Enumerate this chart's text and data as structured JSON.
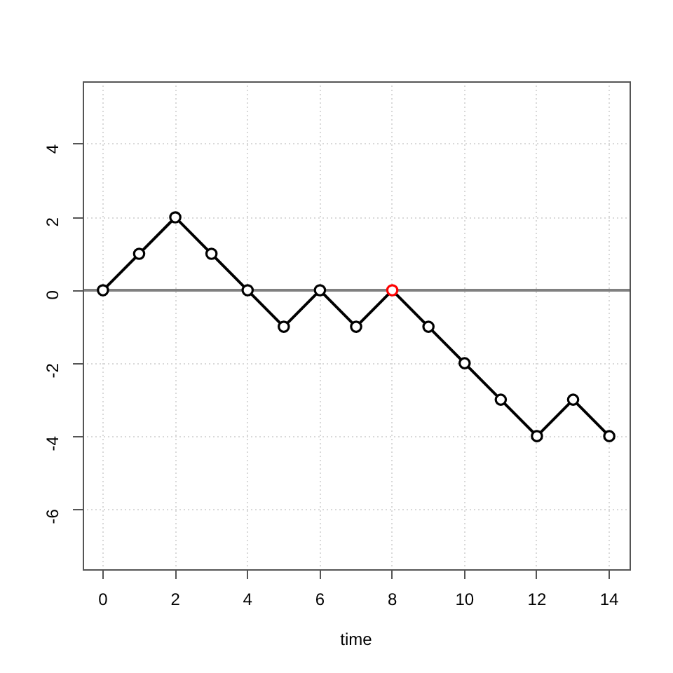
{
  "chart_data": {
    "type": "line",
    "xlabel": "time",
    "x": [
      0,
      1,
      2,
      3,
      4,
      5,
      6,
      7,
      8,
      9,
      10,
      11,
      12,
      13,
      14
    ],
    "series": [
      {
        "color": "#000000",
        "colors": [
          "#000000",
          "#000000",
          "#000000",
          "#000000",
          "#000000",
          "#000000",
          "#000000",
          "#000000",
          "#ff0000",
          "#000000",
          "#000000",
          "#000000",
          "#000000",
          "#000000",
          "#000000"
        ],
        "values": [
          0,
          1,
          2,
          1,
          0,
          -1,
          0,
          -1,
          0,
          -1,
          -2,
          -3,
          -4,
          -3,
          -4
        ]
      }
    ],
    "xlim": [
      -0.56,
      14.56
    ],
    "ylim": [
      -7.65,
      5.73
    ],
    "xticks": [
      0,
      2,
      4,
      6,
      8,
      10,
      12,
      14
    ],
    "yticks": [
      -6,
      -4,
      -2,
      0,
      2,
      4
    ],
    "grid": true,
    "legend": false,
    "marker": "circle",
    "line_style": "solid",
    "ref_lines": [
      {
        "axis": "y",
        "value": 0,
        "color": "#808080"
      }
    ]
  }
}
